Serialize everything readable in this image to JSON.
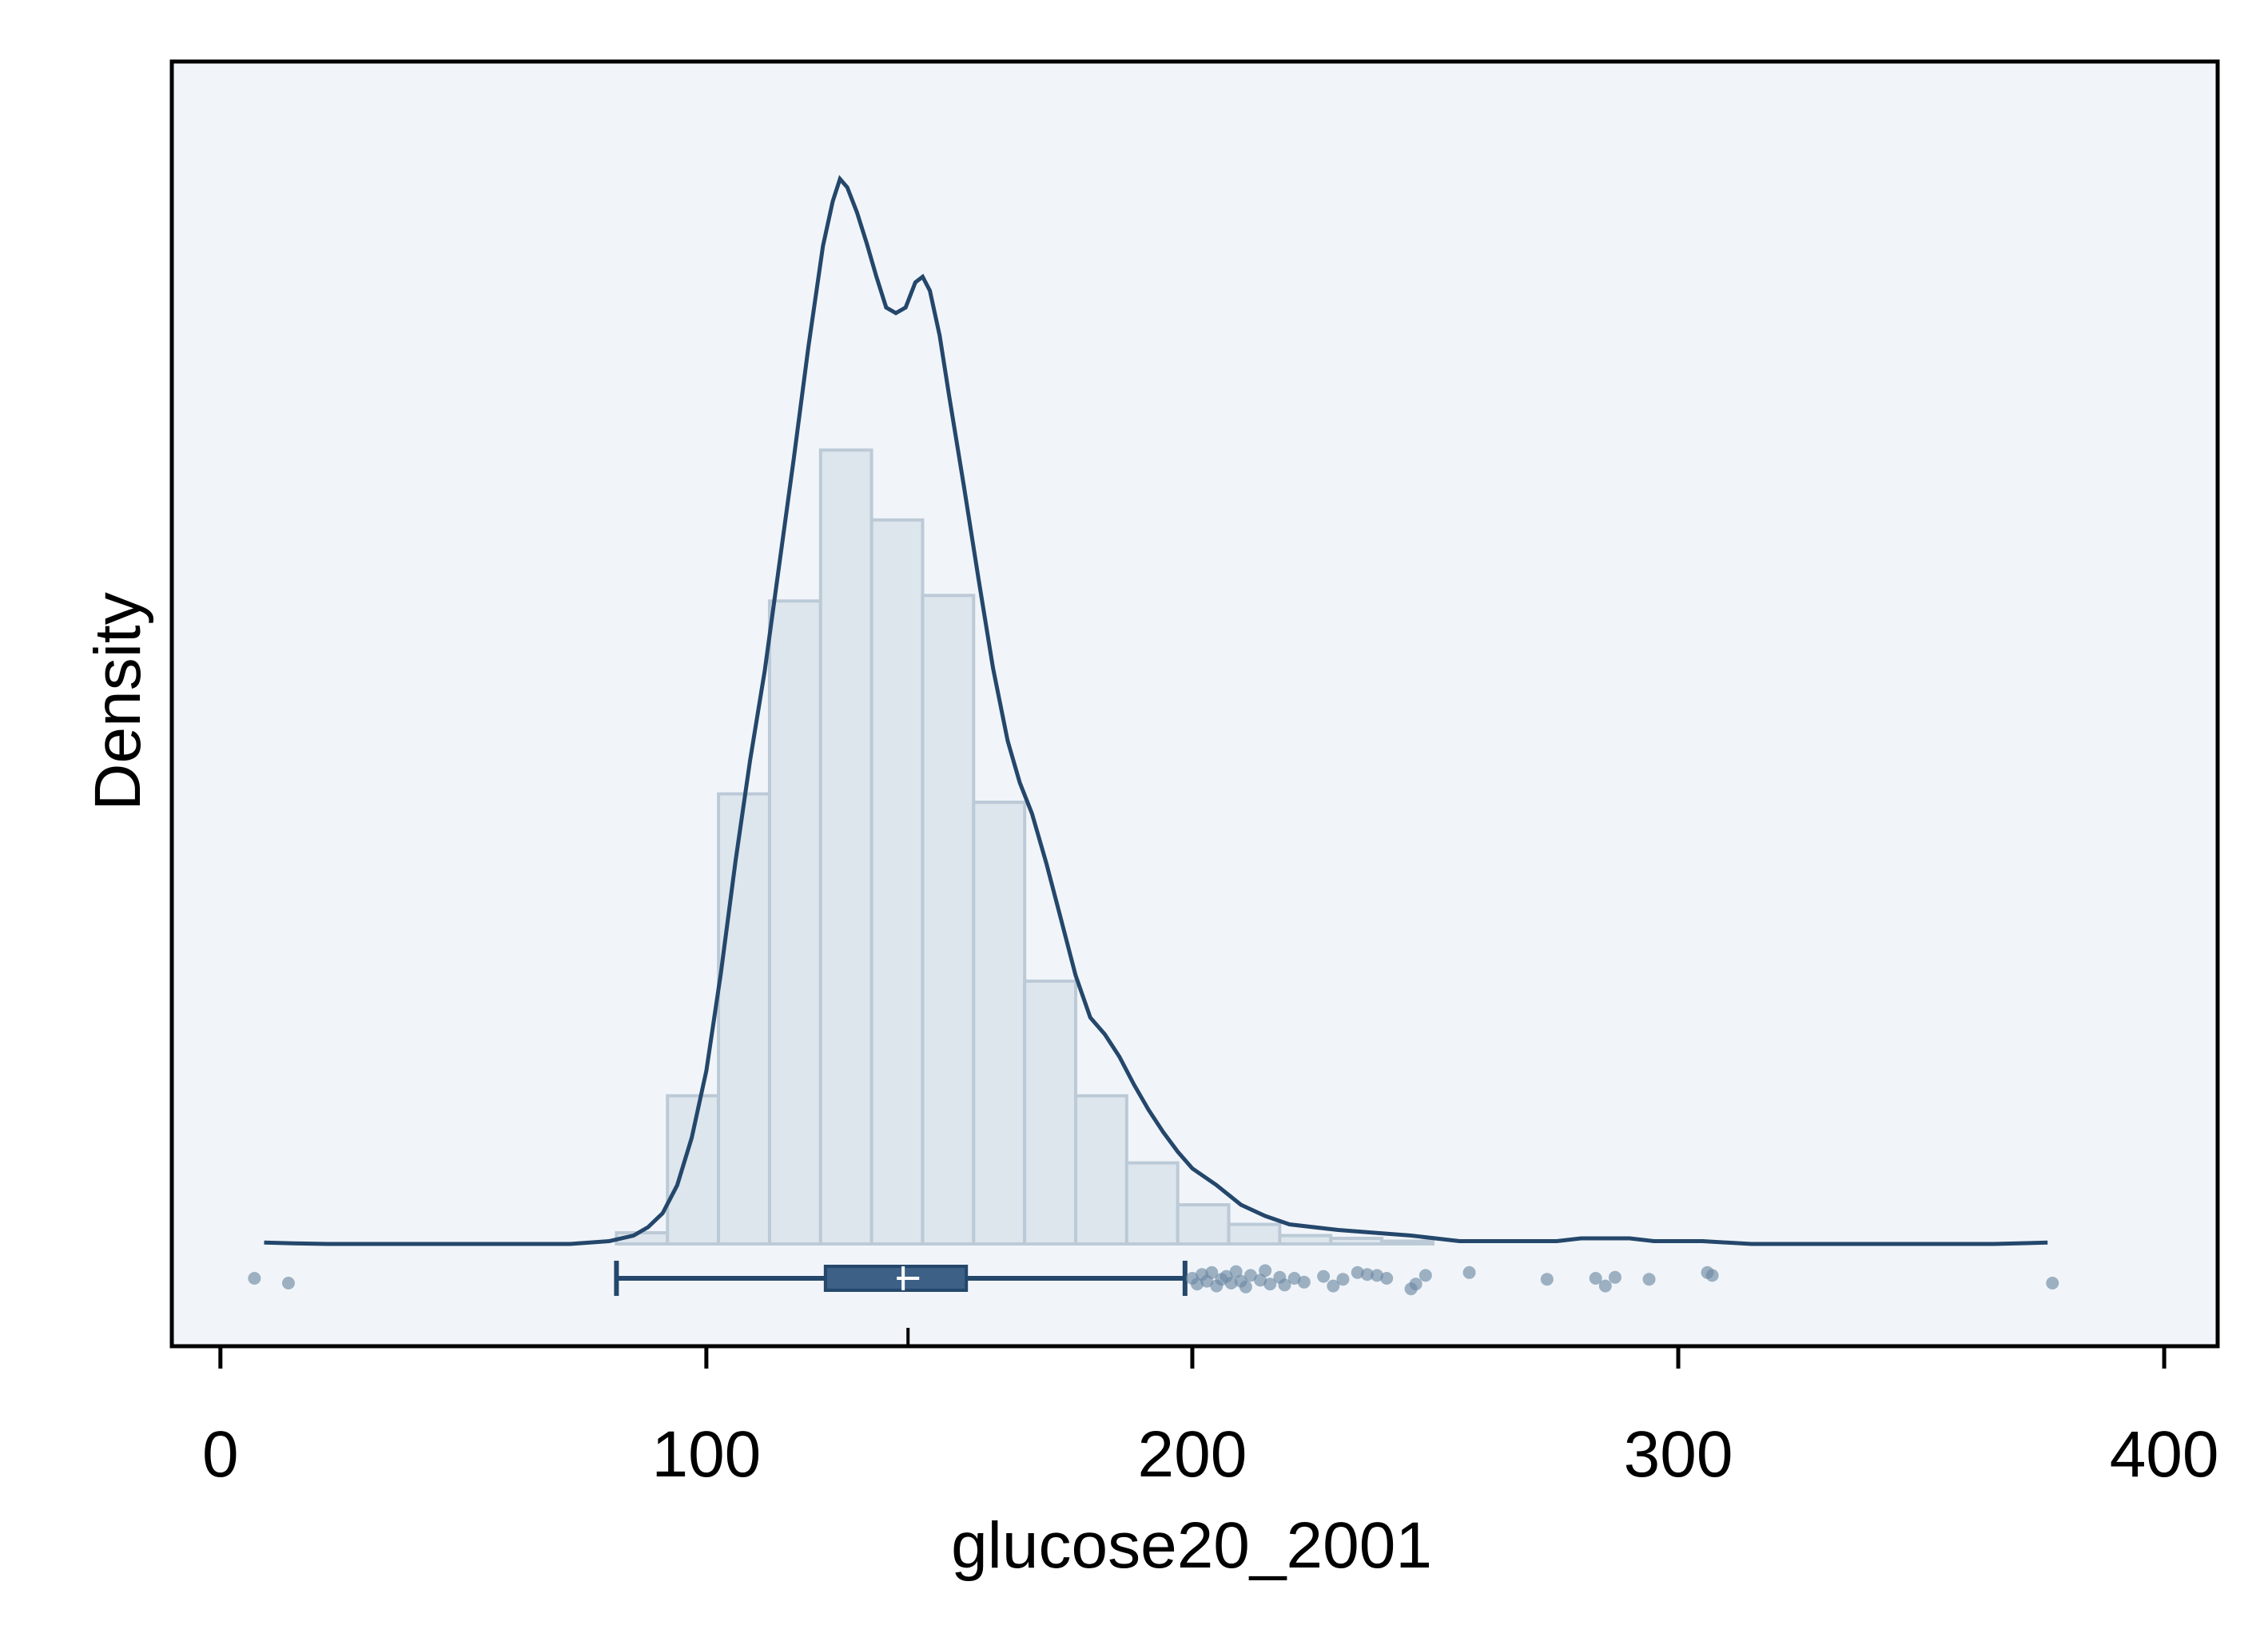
{
  "chart_data": {
    "type": "histogram",
    "xlabel": "glucose20_2001",
    "ylabel": "Density",
    "xlim": [
      -10,
      411
    ],
    "xticks": [
      0,
      100,
      200,
      300,
      400
    ],
    "xtick_labels": [
      "0",
      "100",
      "200",
      "300",
      "400"
    ],
    "yticks": [],
    "grid": false,
    "legend": "none",
    "colors": {
      "bar_fill": "#dde5ed",
      "bar_edge": "#bccad7",
      "curve": "#24476b",
      "box": "#3d6186",
      "points": "#6f8aa5",
      "plot_bg": "#f1f5f9"
    },
    "histogram": {
      "bin_width": 10.5,
      "bins": [
        {
          "start": 81.5,
          "density": 0.0004
        },
        {
          "start": 92.0,
          "density": 0.0053
        },
        {
          "start": 102.5,
          "density": 0.0161
        },
        {
          "start": 113.0,
          "density": 0.023
        },
        {
          "start": 123.5,
          "density": 0.0284
        },
        {
          "start": 134.0,
          "density": 0.0259
        },
        {
          "start": 144.5,
          "density": 0.0232
        },
        {
          "start": 155.0,
          "density": 0.0158
        },
        {
          "start": 165.5,
          "density": 0.0094
        },
        {
          "start": 176.0,
          "density": 0.0053
        },
        {
          "start": 186.5,
          "density": 0.0029
        },
        {
          "start": 197.0,
          "density": 0.0014
        },
        {
          "start": 207.5,
          "density": 0.0007
        },
        {
          "start": 218.0,
          "density": 0.0003
        },
        {
          "start": 228.5,
          "density": 0.0002
        },
        {
          "start": 239.0,
          "density": 0.0001
        }
      ]
    },
    "kde": {
      "x": [
        9,
        15,
        22,
        40,
        60,
        72,
        80,
        85,
        88,
        91,
        94,
        97,
        100,
        103,
        106,
        109,
        112,
        115,
        118,
        121,
        124,
        126,
        127.5,
        129,
        131,
        133,
        135,
        137,
        139,
        141,
        143,
        144.5,
        146,
        148,
        150,
        153,
        156,
        159,
        162,
        164.5,
        167,
        170,
        173,
        176,
        179,
        182,
        185,
        188,
        191,
        194,
        197,
        200,
        205,
        210,
        215,
        220,
        230,
        245,
        255,
        275,
        280,
        285,
        290,
        295,
        305,
        315,
        330,
        365,
        376
      ],
      "y": [
        5e-05,
        2e-05,
        0,
        0,
        0,
        0,
        0.0001,
        0.0003,
        0.0006,
        0.0011,
        0.0021,
        0.0038,
        0.0062,
        0.0097,
        0.0137,
        0.0173,
        0.0205,
        0.0243,
        0.0281,
        0.0321,
        0.0357,
        0.0373,
        0.0381,
        0.0378,
        0.0369,
        0.0358,
        0.0346,
        0.0335,
        0.0333,
        0.0335,
        0.0344,
        0.0346,
        0.0341,
        0.0325,
        0.0303,
        0.0271,
        0.0238,
        0.0206,
        0.018,
        0.0165,
        0.0154,
        0.0136,
        0.0116,
        0.0096,
        0.0081,
        0.0075,
        0.0067,
        0.0057,
        0.0048,
        0.004,
        0.0033,
        0.0027,
        0.0021,
        0.0014,
        0.001,
        0.0007,
        0.0005,
        0.0003,
        0.0001,
        0.0001,
        0.0002,
        0.0002,
        0.0002,
        0.0001,
        0.0001,
        0,
        0,
        0,
        5e-05
      ]
    },
    "ymax": 0.0405,
    "boxplot": {
      "whisker_low": 81.5,
      "q1": 124.5,
      "median": 140.5,
      "q3": 153.5,
      "whisker_high": 198.5,
      "mean": 141.5,
      "outliers_y_jitter": [
        {
          "x": 7,
          "j": 0
        },
        {
          "x": 14,
          "j": 0.5
        },
        {
          "x": 200,
          "j": 0
        },
        {
          "x": 201,
          "j": 0.6
        },
        {
          "x": 202,
          "j": -0.4
        },
        {
          "x": 203,
          "j": 0.3
        },
        {
          "x": 204,
          "j": -0.6
        },
        {
          "x": 205,
          "j": 0.8
        },
        {
          "x": 206,
          "j": 0.1
        },
        {
          "x": 207,
          "j": -0.2
        },
        {
          "x": 208,
          "j": 0.5
        },
        {
          "x": 209,
          "j": -0.7
        },
        {
          "x": 210,
          "j": 0.3
        },
        {
          "x": 211,
          "j": 0.9
        },
        {
          "x": 212,
          "j": -0.3
        },
        {
          "x": 214,
          "j": 0.2
        },
        {
          "x": 215,
          "j": -0.8
        },
        {
          "x": 216,
          "j": 0.6
        },
        {
          "x": 218,
          "j": -0.1
        },
        {
          "x": 219,
          "j": 0.7
        },
        {
          "x": 221,
          "j": 0
        },
        {
          "x": 223,
          "j": 0.4
        },
        {
          "x": 227,
          "j": -0.2
        },
        {
          "x": 229,
          "j": 0.8
        },
        {
          "x": 231,
          "j": 0.1
        },
        {
          "x": 234,
          "j": -0.6
        },
        {
          "x": 236,
          "j": -0.4
        },
        {
          "x": 238,
          "j": -0.3
        },
        {
          "x": 240,
          "j": 0
        },
        {
          "x": 245,
          "j": 1.1
        },
        {
          "x": 246,
          "j": 0.6
        },
        {
          "x": 248,
          "j": -0.3
        },
        {
          "x": 257,
          "j": -0.6
        },
        {
          "x": 273,
          "j": 0.1
        },
        {
          "x": 283,
          "j": 0
        },
        {
          "x": 285,
          "j": 0.8
        },
        {
          "x": 287,
          "j": -0.1
        },
        {
          "x": 294,
          "j": 0.1
        },
        {
          "x": 306,
          "j": -0.6
        },
        {
          "x": 307,
          "j": -0.3
        },
        {
          "x": 377,
          "j": 0.5
        }
      ]
    }
  }
}
